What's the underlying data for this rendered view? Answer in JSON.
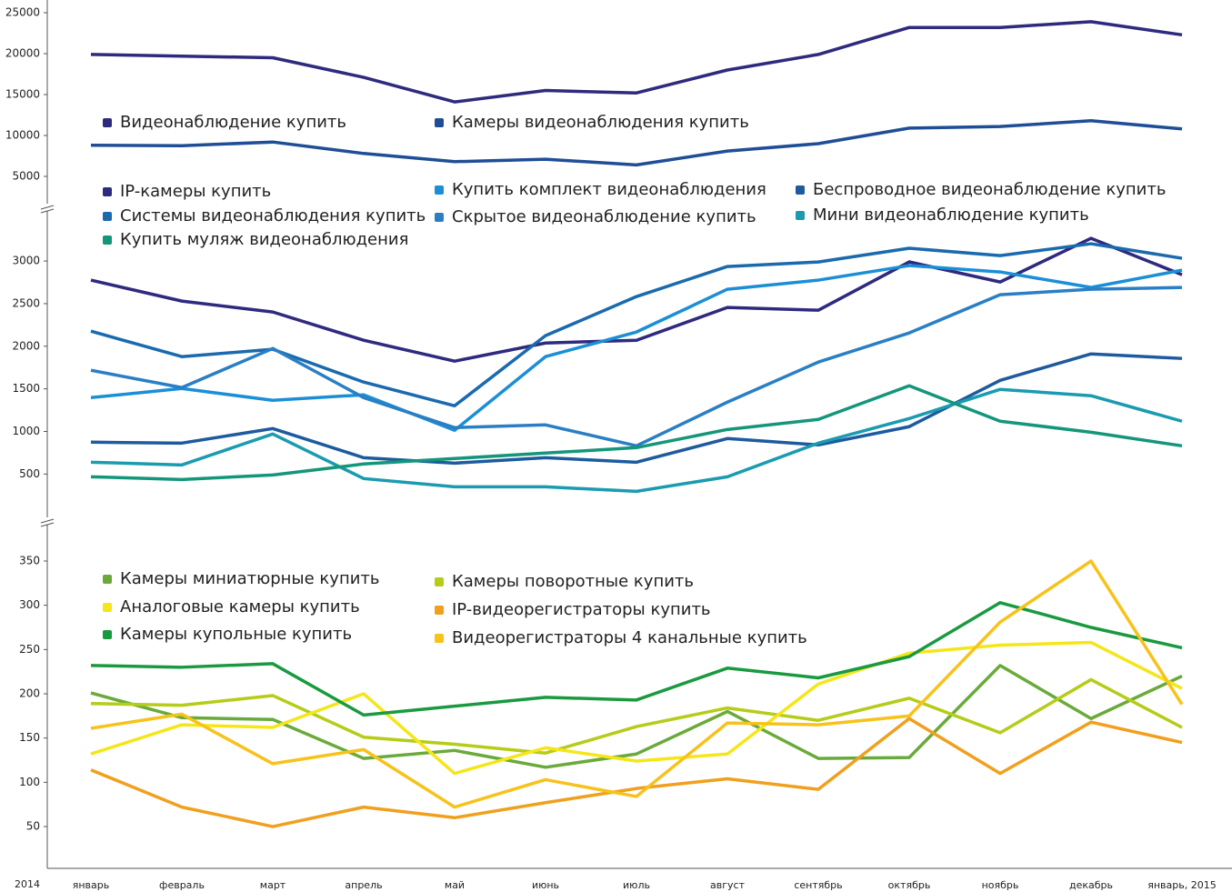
{
  "chart_data": [
    {
      "type": "line",
      "ylim": [
        2500,
        25000
      ],
      "yticks": [
        5000,
        10000,
        15000,
        20000,
        25000
      ],
      "series": [
        {
          "name": "Видеонаблюдение купить",
          "color": "#2e2a7e",
          "values": [
            19900,
            19700,
            19500,
            17100,
            14100,
            15500,
            15200,
            18000,
            19900,
            23200,
            23200,
            23900,
            22300
          ]
        },
        {
          "name": "Камеры видеонаблюдения купить",
          "color": "#1f4e96",
          "values": [
            8800,
            8750,
            9200,
            7800,
            6800,
            7100,
            6400,
            8100,
            9000,
            10900,
            11100,
            11800,
            10800
          ]
        }
      ]
    },
    {
      "type": "line",
      "ylim": [
        0,
        3400
      ],
      "yticks": [
        500,
        1000,
        1500,
        2000,
        2500,
        3000
      ],
      "series": [
        {
          "name": "IP-камеры купить",
          "color": "#2e2a7e",
          "values": [
            2776,
            2530,
            2402,
            2070,
            1825,
            2038,
            2070,
            2455,
            2423,
            2990,
            2754,
            3267,
            2840
          ]
        },
        {
          "name": "Купить комплект видеонаблюдения",
          "color": "#1b8fd6",
          "values": [
            1397,
            1504,
            1365,
            1430,
            1013,
            1878,
            2167,
            2669,
            2776,
            2947,
            2872,
            2690,
            2893
          ]
        },
        {
          "name": "Беспроводное видеонаблюдение купить",
          "color": "#1d5a9e",
          "values": [
            874,
            863,
            1034,
            692,
            628,
            692,
            639,
            917,
            842,
            1056,
            1600,
            1910,
            1857
          ]
        },
        {
          "name": "Системы видеонаблюдения купить",
          "color": "#1a6aad",
          "values": [
            2177,
            1878,
            1964,
            1579,
            1301,
            2124,
            2583,
            2936,
            2989,
            3150,
            3064,
            3203,
            3032
          ]
        },
        {
          "name": "Скрытое видеонаблюдение купить",
          "color": "#2a7fc4",
          "values": [
            1718,
            1515,
            1974,
            1397,
            1045,
            1077,
            831,
            1344,
            1814,
            2156,
            2605,
            2669,
            2690
          ]
        },
        {
          "name": "Мини видеонаблюдение купить",
          "color": "#1a9bb0",
          "values": [
            639,
            607,
            970,
            447,
            350,
            350,
            297,
            468,
            863,
            1151,
            1494,
            1419,
            1120
          ]
        },
        {
          "name": "Купить муляж видеонаблюдения",
          "color": "#14967a",
          "values": [
            468,
            436,
            489,
            618,
            682,
            746,
            810,
            1023,
            1141,
            1536,
            1120,
            991,
            831
          ]
        }
      ]
    },
    {
      "type": "line",
      "year_label": "2014",
      "categories": [
        "январь",
        "февраль",
        "март",
        "апрель",
        "май",
        "июнь",
        "июль",
        "август",
        "сентябрь",
        "октябрь",
        "ноябрь",
        "декабрь",
        "январь, 2015"
      ],
      "ylim": [
        0,
        380
      ],
      "yticks": [
        50,
        100,
        150,
        200,
        250,
        300,
        350
      ],
      "series": [
        {
          "name": "Камеры миниатюрные купить",
          "color": "#6aaa3a",
          "values": [
            201,
            173,
            171,
            127,
            136,
            117,
            132,
            180,
            127,
            128,
            232,
            172,
            220
          ]
        },
        {
          "name": "Камеры поворотные купить",
          "color": "#b5cc18",
          "values": [
            189,
            187,
            198,
            151,
            143,
            133,
            163,
            184,
            170,
            195,
            156,
            216,
            162
          ]
        },
        {
          "name": "Аналоговые камеры купить",
          "color": "#f5e61a",
          "values": [
            132,
            165,
            162,
            200,
            110,
            139,
            124,
            132,
            211,
            246,
            255,
            258,
            206
          ]
        },
        {
          "name": "IP-видеорегистраторы купить",
          "color": "#f0a01e",
          "values": [
            114,
            72,
            50,
            72,
            60,
            77,
            93,
            104,
            92,
            172,
            110,
            168,
            145
          ]
        },
        {
          "name": "Камеры купольные купить",
          "color": "#1a9a40",
          "values": [
            232,
            230,
            234,
            176,
            186,
            196,
            193,
            229,
            218,
            242,
            303,
            275,
            252
          ]
        },
        {
          "name": "Видеорегистраторы 4 канальные купить",
          "color": "#f7c21a",
          "values": [
            161,
            177,
            121,
            137,
            72,
            103,
            84,
            167,
            165,
            175,
            281,
            350,
            188
          ]
        }
      ]
    }
  ]
}
